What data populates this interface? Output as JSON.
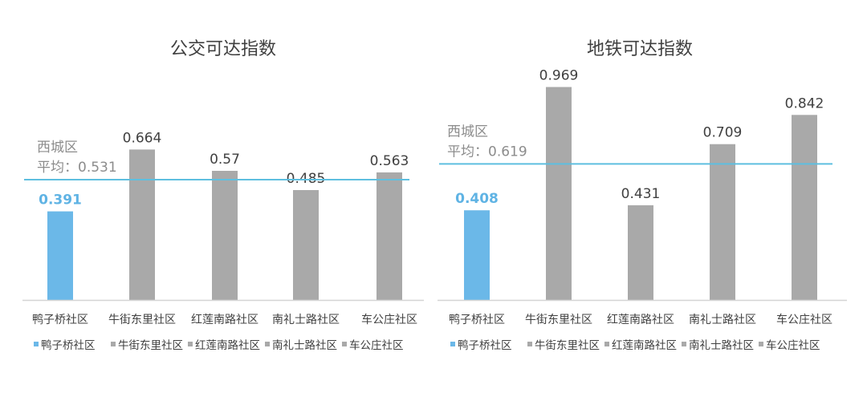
{
  "colors": {
    "highlight": "#6bb8e8",
    "bar": "#a9a9a9",
    "avg_line": "#5ebfe0",
    "axis": "#d4d4d4",
    "text": "#404040",
    "avg_text": "#8c8c8c"
  },
  "chart_data": [
    {
      "type": "bar",
      "title": "公交可达指数",
      "categories": [
        "鸭子桥社区",
        "牛街东里社区",
        "红莲南路社区",
        "南礼士路社区",
        "车公庄社区"
      ],
      "values": [
        0.391,
        0.664,
        0.57,
        0.485,
        0.563
      ],
      "value_labels": [
        "0.391",
        "0.664",
        "0.57",
        "0.485",
        "0.563"
      ],
      "highlight_index": 0,
      "average": {
        "value": 0.531,
        "line1": "西城区",
        "line2": "平均：0.531"
      },
      "ylim": [
        0,
        0.97
      ],
      "grid": false,
      "legend": {
        "position": "bottom",
        "entries": [
          "鸭子桥社区",
          "牛街东里社区",
          "红莲南路社区",
          "南礼士路社区",
          "车公庄社区"
        ]
      }
    },
    {
      "type": "bar",
      "title": "地铁可达指数",
      "categories": [
        "鸭子桥社区",
        "牛街东里社区",
        "红莲南路社区",
        "南礼士路社区",
        "车公庄社区"
      ],
      "values": [
        0.408,
        0.969,
        0.431,
        0.709,
        0.842
      ],
      "value_labels": [
        "0.408",
        "0.969",
        "0.431",
        "0.709",
        "0.842"
      ],
      "highlight_index": 0,
      "average": {
        "value": 0.619,
        "line1": "西城区",
        "line2": "平均：0.619"
      },
      "ylim": [
        0,
        1.0
      ],
      "grid": false,
      "legend": {
        "position": "bottom",
        "entries": [
          "鸭子桥社区",
          "牛街东里社区",
          "红莲南路社区",
          "南礼士路社区",
          "车公庄社区"
        ]
      }
    }
  ]
}
